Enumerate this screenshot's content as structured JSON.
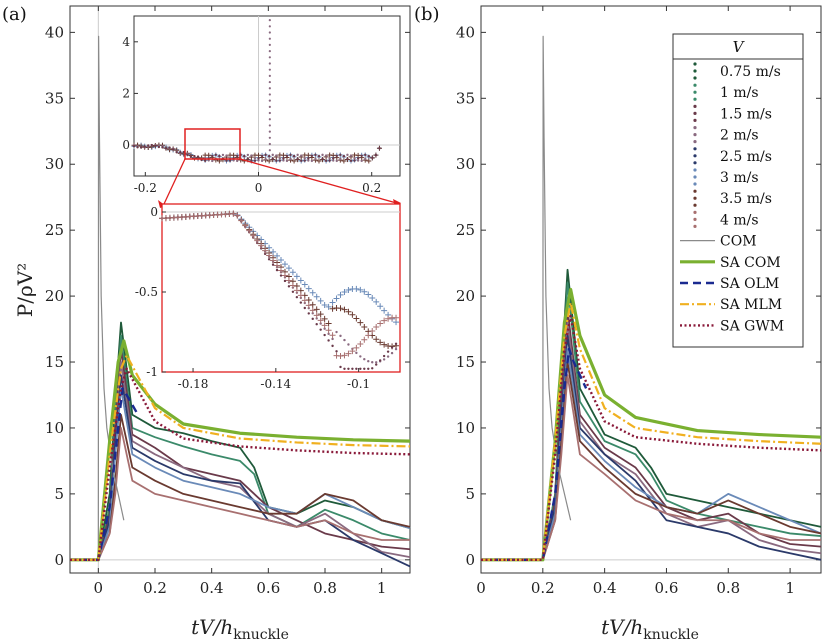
{
  "chart_data": [
    {
      "panel": "(a)",
      "type": "line",
      "xlabel": "tV/h",
      "xlabel_sub": "knuckle",
      "ylabel": "P/ρV²",
      "xlim": [
        -0.1,
        1.1
      ],
      "ylim": [
        -1,
        42
      ],
      "xticks": [
        "0",
        "0.2",
        "0.4",
        "0.6",
        "0.8",
        "1"
      ],
      "yticks": [
        "0",
        "5",
        "10",
        "15",
        "20",
        "25",
        "30",
        "35",
        "40"
      ],
      "models": [
        {
          "name": "COM",
          "x": [
            -0.1,
            0.0,
            0.001,
            0.004,
            0.01,
            0.02,
            0.03,
            0.05,
            0.07,
            0.09
          ],
          "y": [
            0,
            0,
            39.7,
            32,
            20,
            13,
            10,
            7,
            5,
            3
          ]
        },
        {
          "name": "SA COM",
          "x": [
            -0.1,
            0.0,
            0.04,
            0.07,
            0.09,
            0.12,
            0.2,
            0.3,
            0.5,
            0.7,
            0.9,
            1.1
          ],
          "y": [
            0,
            0,
            9,
            15,
            16.6,
            14,
            11.8,
            10.3,
            9.6,
            9.3,
            9.1,
            9.0
          ]
        },
        {
          "name": "SA OLM",
          "x": [
            -0.1,
            0.0,
            0.04,
            0.07,
            0.085,
            0.1,
            0.14
          ],
          "y": [
            0,
            0,
            4,
            10,
            13,
            12.5,
            11
          ]
        },
        {
          "name": "SA MLM",
          "x": [
            -0.1,
            0.0,
            0.04,
            0.08,
            0.1,
            0.2,
            0.3,
            0.5,
            0.7,
            0.9,
            1.1
          ],
          "y": [
            0,
            0,
            8,
            14.5,
            15.5,
            11.5,
            10,
            9.2,
            8.9,
            8.7,
            8.6
          ]
        },
        {
          "name": "SA GWM",
          "x": [
            -0.1,
            0.0,
            0.04,
            0.08,
            0.1,
            0.2,
            0.3,
            0.5,
            0.7,
            0.9,
            1.1
          ],
          "y": [
            0,
            0,
            7,
            13,
            14.5,
            10.5,
            9.2,
            8.6,
            8.3,
            8.1,
            8.0
          ]
        }
      ],
      "experiments": [
        {
          "name": "0.75 m/s",
          "x": [
            -0.1,
            0,
            0.04,
            0.06,
            0.08,
            0.12,
            0.2,
            0.3,
            0.4,
            0.5,
            0.55,
            0.6,
            0.7,
            0.8,
            0.9,
            1.0,
            1.1
          ],
          "y": [
            0,
            0,
            5,
            12,
            18,
            11,
            10,
            9.6,
            9,
            8.5,
            7,
            4,
            3.5,
            4.5,
            4,
            3,
            2.4
          ]
        },
        {
          "name": "1 m/s",
          "x": [
            -0.1,
            0,
            0.04,
            0.06,
            0.08,
            0.12,
            0.2,
            0.3,
            0.4,
            0.5,
            0.55,
            0.6,
            0.7,
            0.8,
            0.9,
            1.0,
            1.1
          ],
          "y": [
            0,
            0,
            4,
            11,
            17,
            10,
            9.3,
            8.6,
            8,
            7.5,
            6.5,
            3.5,
            2.5,
            3.8,
            3,
            2,
            1.5
          ]
        },
        {
          "name": "1.5 m/s",
          "x": [
            -0.1,
            0,
            0.04,
            0.06,
            0.08,
            0.12,
            0.2,
            0.3,
            0.4,
            0.5,
            0.6,
            0.7,
            0.8,
            0.9,
            1.0,
            1.1
          ],
          "y": [
            0,
            0,
            3.5,
            10,
            16,
            9.5,
            8.5,
            7,
            6.5,
            6,
            4,
            3,
            2,
            1.5,
            1,
            0.8
          ]
        },
        {
          "name": "2 m/s",
          "x": [
            -0.1,
            0,
            0.04,
            0.06,
            0.08,
            0.12,
            0.2,
            0.3,
            0.4,
            0.5,
            0.6,
            0.7,
            0.8,
            0.9,
            1.0,
            1.1
          ],
          "y": [
            0,
            0,
            3,
            9,
            15,
            9,
            8,
            7,
            6,
            5.5,
            3.5,
            2.5,
            3.5,
            2,
            0.6,
            0.2
          ]
        },
        {
          "name": "2.5 m/s",
          "x": [
            -0.1,
            0,
            0.04,
            0.06,
            0.08,
            0.12,
            0.2,
            0.3,
            0.4,
            0.5,
            0.6,
            0.7,
            0.8,
            0.9,
            1.0,
            1.1
          ],
          "y": [
            0,
            0,
            3,
            9,
            14,
            8.5,
            7.5,
            6.5,
            6,
            5.8,
            3,
            2.5,
            3,
            1.5,
            0.5,
            -0.5
          ]
        },
        {
          "name": "3 m/s",
          "x": [
            -0.1,
            0,
            0.04,
            0.06,
            0.08,
            0.12,
            0.2,
            0.3,
            0.4,
            0.5,
            0.6,
            0.7,
            0.8,
            0.9,
            1.0,
            1.1
          ],
          "y": [
            0,
            0,
            2.5,
            8,
            13,
            8,
            7,
            6,
            5.5,
            5,
            4,
            3.5,
            5,
            4,
            3,
            2.4
          ]
        },
        {
          "name": "3.5 m/s",
          "x": [
            -0.1,
            0,
            0.04,
            0.06,
            0.08,
            0.12,
            0.2,
            0.3,
            0.4,
            0.5,
            0.6,
            0.7,
            0.8,
            0.9,
            1.0,
            1.1
          ],
          "y": [
            0,
            0,
            2,
            6,
            11,
            7,
            6,
            5,
            4.5,
            4,
            3.5,
            3.5,
            5,
            4.5,
            3,
            2.5
          ]
        },
        {
          "name": "4 m/s",
          "x": [
            -0.1,
            0,
            0.04,
            0.06,
            0.08,
            0.12,
            0.2,
            0.3,
            0.4,
            0.5,
            0.6,
            0.7,
            0.8,
            0.9,
            1.0,
            1.1
          ],
          "y": [
            0,
            0,
            2,
            5,
            10,
            6,
            5,
            4.5,
            4,
            3.5,
            3,
            2.5,
            3,
            2,
            1.5,
            1.5
          ]
        }
      ]
    },
    {
      "panel": "(b)",
      "type": "line",
      "xlabel": "tV/h",
      "xlabel_sub": "knuckle",
      "xlim": [
        0,
        1.1
      ],
      "ylim": [
        -1,
        42
      ],
      "xticks": [
        "0",
        "0.2",
        "0.4",
        "0.6",
        "0.8",
        "1"
      ],
      "yticks": [
        "0",
        "5",
        "10",
        "15",
        "20",
        "25",
        "30",
        "35",
        "40"
      ],
      "models": [
        {
          "name": "COM",
          "x": [
            0,
            0.2,
            0.201,
            0.204,
            0.21,
            0.22,
            0.23,
            0.25,
            0.27,
            0.29
          ],
          "y": [
            0,
            0,
            39.7,
            32,
            20,
            13,
            10,
            7,
            5,
            3
          ]
        },
        {
          "name": "SA COM",
          "x": [
            0,
            0.2,
            0.24,
            0.27,
            0.29,
            0.32,
            0.4,
            0.5,
            0.7,
            0.9,
            1.1
          ],
          "y": [
            0,
            0,
            9,
            18,
            20.5,
            17,
            12.5,
            10.8,
            9.8,
            9.5,
            9.3
          ]
        },
        {
          "name": "SA OLM",
          "x": [
            0,
            0.2,
            0.24,
            0.27,
            0.285,
            0.3,
            0.34
          ],
          "y": [
            0,
            0,
            5,
            13,
            16,
            15,
            13
          ]
        },
        {
          "name": "SA MLM",
          "x": [
            0,
            0.2,
            0.24,
            0.27,
            0.29,
            0.32,
            0.4,
            0.5,
            0.7,
            0.9,
            1.1
          ],
          "y": [
            0,
            0,
            9,
            17,
            19.5,
            16,
            11.5,
            10,
            9.3,
            9.0,
            8.8
          ]
        },
        {
          "name": "SA GWM",
          "x": [
            0,
            0.2,
            0.24,
            0.27,
            0.29,
            0.32,
            0.4,
            0.5,
            0.7,
            0.9,
            1.1
          ],
          "y": [
            0,
            0,
            8,
            16,
            18.5,
            14.5,
            10.5,
            9.3,
            8.8,
            8.5,
            8.3
          ]
        }
      ],
      "experiments": [
        {
          "name": "0.75 m/s",
          "x": [
            0,
            0.2,
            0.24,
            0.26,
            0.28,
            0.32,
            0.4,
            0.5,
            0.55,
            0.6,
            0.7,
            0.8,
            0.9,
            1.0,
            1.1
          ],
          "y": [
            0,
            0,
            5,
            14,
            22,
            13,
            9.5,
            8.5,
            7,
            5,
            4.5,
            4,
            3.5,
            3,
            2.5
          ]
        },
        {
          "name": "1 m/s",
          "x": [
            0,
            0.2,
            0.24,
            0.26,
            0.28,
            0.32,
            0.4,
            0.5,
            0.55,
            0.6,
            0.7,
            0.8,
            0.9,
            1.0,
            1.1
          ],
          "y": [
            0,
            0,
            5,
            13,
            21,
            12,
            9,
            8,
            6.5,
            4.5,
            3.5,
            3,
            2.5,
            2,
            1.8
          ]
        },
        {
          "name": "1.5 m/s",
          "x": [
            0,
            0.2,
            0.24,
            0.26,
            0.28,
            0.32,
            0.4,
            0.5,
            0.6,
            0.7,
            0.8,
            0.9,
            1.0,
            1.1
          ],
          "y": [
            0,
            0,
            4.5,
            12,
            19,
            11,
            8.5,
            7,
            4,
            3,
            3.5,
            2,
            1.2,
            1
          ]
        },
        {
          "name": "2 m/s",
          "x": [
            0,
            0.2,
            0.24,
            0.26,
            0.28,
            0.32,
            0.4,
            0.5,
            0.6,
            0.7,
            0.8,
            0.9,
            1.0,
            1.1
          ],
          "y": [
            0,
            0,
            4,
            11,
            18,
            10.5,
            8,
            6.5,
            3.5,
            2.5,
            3,
            1.5,
            0.8,
            0.5
          ]
        },
        {
          "name": "2.5 m/s",
          "x": [
            0,
            0.2,
            0.24,
            0.26,
            0.28,
            0.32,
            0.4,
            0.5,
            0.6,
            0.7,
            0.8,
            0.9,
            1.0,
            1.1
          ],
          "y": [
            0,
            0,
            4,
            11,
            17,
            10,
            8,
            6,
            3,
            2.5,
            2,
            1,
            0.5,
            0
          ]
        },
        {
          "name": "3 m/s",
          "x": [
            0,
            0.2,
            0.24,
            0.26,
            0.28,
            0.32,
            0.4,
            0.5,
            0.6,
            0.7,
            0.8,
            0.9,
            1.0,
            1.1
          ],
          "y": [
            0,
            0,
            3.5,
            10,
            16,
            9.5,
            7.5,
            5.5,
            4,
            3.5,
            5,
            4,
            3,
            2
          ]
        },
        {
          "name": "3.5 m/s",
          "x": [
            0,
            0.2,
            0.24,
            0.26,
            0.28,
            0.32,
            0.4,
            0.5,
            0.6,
            0.7,
            0.8,
            0.9,
            1.0,
            1.1
          ],
          "y": [
            0,
            0,
            3,
            9,
            15,
            9,
            7,
            5,
            4,
            3.5,
            4.5,
            3.5,
            2.5,
            2
          ]
        },
        {
          "name": "4 m/s",
          "x": [
            0,
            0.2,
            0.24,
            0.26,
            0.28,
            0.32,
            0.4,
            0.5,
            0.6,
            0.7,
            0.8,
            0.9,
            1.0,
            1.1
          ],
          "y": [
            0,
            0,
            3,
            8,
            14,
            8,
            6.5,
            4.5,
            3.5,
            3,
            3,
            2,
            1.5,
            1.5
          ]
        }
      ]
    }
  ],
  "inset_top": {
    "xlim": [
      -0.22,
      0.25
    ],
    "ylim": [
      -1.2,
      5
    ],
    "xticks": [
      "-0.2",
      "0",
      "0.2"
    ],
    "yticks": [
      "0",
      "2",
      "4"
    ]
  },
  "inset_zoom": {
    "xlim": [
      -0.195,
      -0.08
    ],
    "ylim": [
      -1,
      0.05
    ],
    "xticks": [
      "-0.18",
      "-0.14",
      "-0.1"
    ],
    "yticks": [
      "0",
      "-0.5",
      "-1"
    ]
  },
  "legend": {
    "title": "V",
    "entries": [
      "0.75 m/s",
      "1 m/s",
      "1.5 m/s",
      "2 m/s",
      "2.5 m/s",
      "3 m/s",
      "3.5 m/s",
      "4 m/s",
      "COM",
      "SA COM",
      "SA OLM",
      "SA MLM",
      "SA GWM"
    ]
  },
  "colors": {
    "0.75 m/s": "#1f5a3a",
    "1 m/s": "#3b8a6a",
    "1.5 m/s": "#6a3a4a",
    "2 m/s": "#8a6a80",
    "2.5 m/s": "#2b3a6a",
    "3 m/s": "#6a8ab8",
    "3.5 m/s": "#6a3a30",
    "4 m/s": "#a87070",
    "COM": "#8a8a8a",
    "SA COM": "#7ab030",
    "SA OLM": "#1a2a90",
    "SA MLM": "#f0b020",
    "SA GWM": "#8a1a3a"
  }
}
